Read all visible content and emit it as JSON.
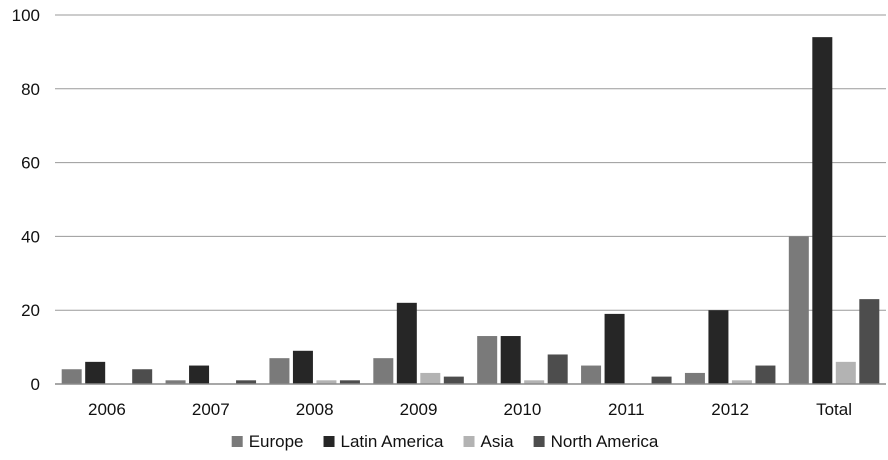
{
  "chart_data": {
    "type": "bar",
    "title": "",
    "xlabel": "",
    "ylabel": "",
    "categories": [
      "2006",
      "2007",
      "2008",
      "2009",
      "2010",
      "2011",
      "2012",
      "Total"
    ],
    "ylim": [
      0,
      100
    ],
    "yticks": [
      0,
      20,
      40,
      60,
      80,
      100
    ],
    "grid": true,
    "legend_position": "bottom",
    "series": [
      {
        "name": "Europe",
        "color": "#7a7a7a",
        "values": [
          4,
          1,
          7,
          7,
          13,
          5,
          3,
          40
        ]
      },
      {
        "name": "Latin America",
        "color": "#262626",
        "values": [
          6,
          5,
          9,
          22,
          13,
          19,
          20,
          94
        ]
      },
      {
        "name": "Asia",
        "color": "#b3b3b3",
        "values": [
          0,
          0,
          1,
          3,
          1,
          0,
          1,
          6
        ]
      },
      {
        "name": "North America",
        "color": "#4d4d4d",
        "values": [
          4,
          1,
          1,
          2,
          8,
          2,
          5,
          23
        ]
      }
    ]
  }
}
